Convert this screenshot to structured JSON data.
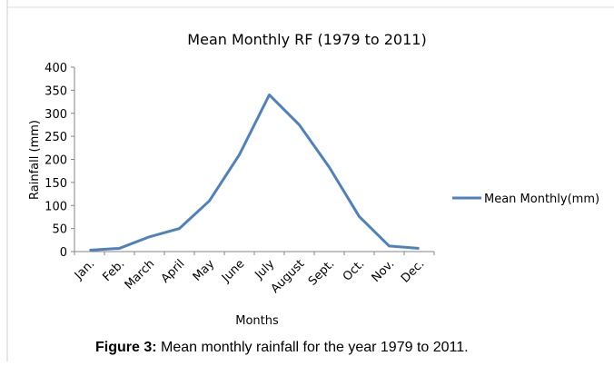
{
  "chart_data": {
    "type": "line",
    "title": "Mean Monthly RF (1979 to 2011)",
    "x_label": "Months",
    "y_label": "Rainfall (mm)",
    "categories": [
      "Jan.",
      "Feb.",
      "March",
      "April",
      "May",
      "June",
      "July",
      "August",
      "Sept.",
      "Oct.",
      "Nov.",
      "Dec."
    ],
    "series": [
      {
        "name": "Mean Monthly(mm)",
        "color": "#4f81bd",
        "values": [
          3,
          7,
          32,
          50,
          110,
          210,
          340,
          275,
          183,
          76,
          12,
          7
        ]
      }
    ],
    "ylim": [
      0,
      400
    ],
    "yticks": [
      0,
      50,
      100,
      150,
      200,
      250,
      300,
      350,
      400
    ],
    "legend": "right"
  },
  "caption": {
    "label": "Figure 3:",
    "text": "Mean monthly rainfall for the year 1979 to 2011."
  }
}
